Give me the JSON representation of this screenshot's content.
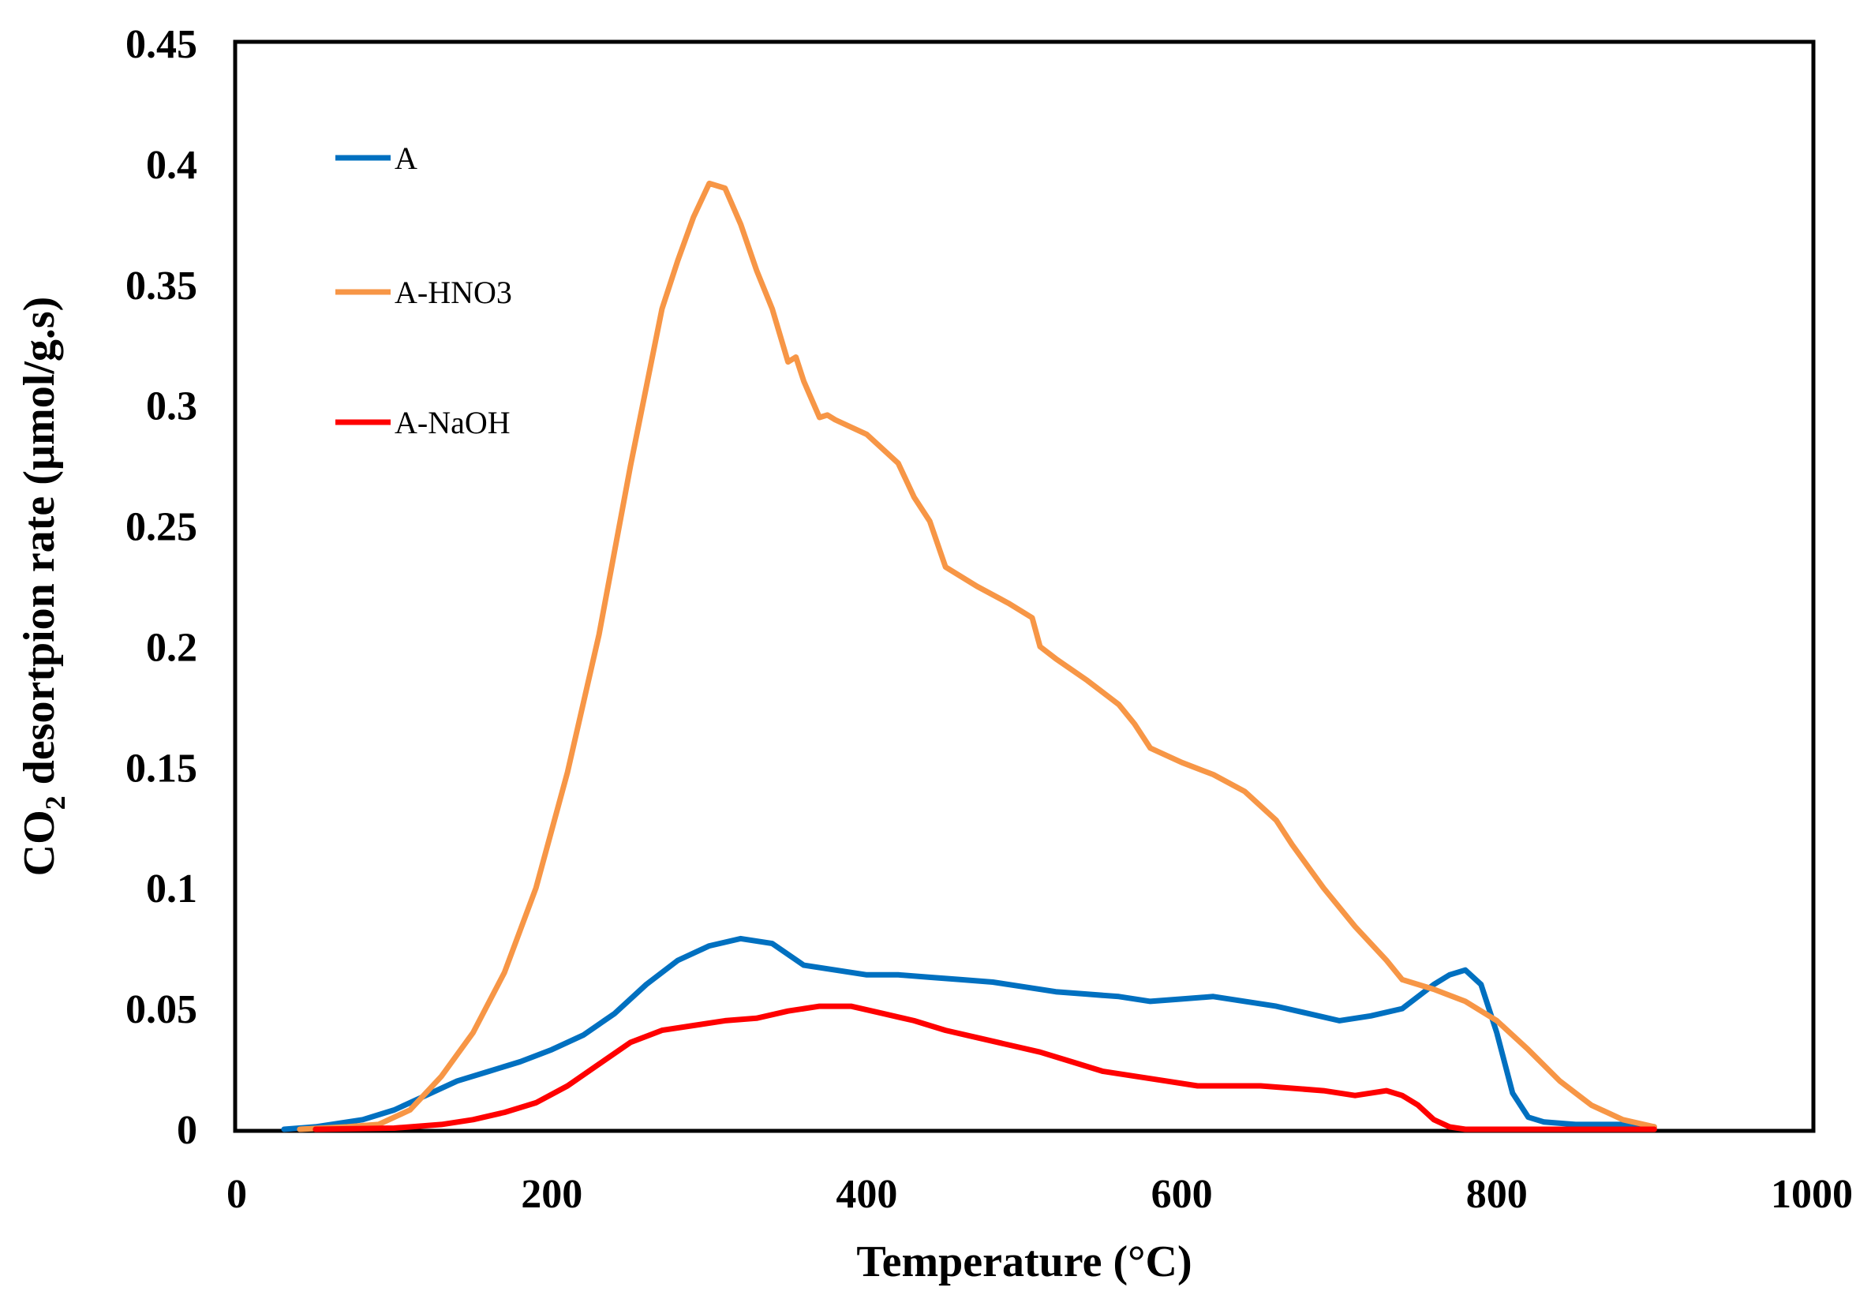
{
  "chart_data": {
    "type": "line",
    "title": "",
    "xlabel": "Temperature (°C)",
    "ylabel_main": "CO",
    "ylabel_sub": "2",
    "ylabel_rest": " desortpion rate (µmol/g.s)",
    "xlim": [
      0,
      1000
    ],
    "ylim": [
      0,
      0.45
    ],
    "xticks": [
      0,
      200,
      400,
      600,
      800,
      1000
    ],
    "xtick_labels": [
      "0",
      "200",
      "400",
      "600",
      "800",
      "1000"
    ],
    "yticks": [
      0,
      0.05,
      0.1,
      0.15,
      0.2,
      0.25,
      0.3,
      0.35,
      0.4,
      0.45
    ],
    "ytick_labels": [
      "0",
      "0.05",
      "0.1",
      "0.15",
      "0.2",
      "0.25",
      "0.3",
      "0.35",
      "0.4",
      "0.45"
    ],
    "grid": false,
    "legend_position": "top-left",
    "series": [
      {
        "name": "A",
        "color": "#0070C0",
        "x": [
          30,
          50,
          80,
          100,
          120,
          140,
          160,
          180,
          200,
          220,
          240,
          260,
          280,
          300,
          320,
          340,
          360,
          380,
          400,
          420,
          440,
          460,
          480,
          500,
          520,
          540,
          560,
          580,
          600,
          620,
          640,
          660,
          680,
          700,
          720,
          740,
          760,
          770,
          780,
          790,
          800,
          810,
          820,
          830,
          850,
          880,
          900
        ],
        "y": [
          0,
          0.001,
          0.004,
          0.008,
          0.014,
          0.02,
          0.024,
          0.028,
          0.033,
          0.039,
          0.048,
          0.06,
          0.07,
          0.076,
          0.079,
          0.077,
          0.068,
          0.066,
          0.064,
          0.064,
          0.063,
          0.062,
          0.061,
          0.059,
          0.057,
          0.056,
          0.055,
          0.053,
          0.054,
          0.055,
          0.053,
          0.051,
          0.048,
          0.045,
          0.047,
          0.05,
          0.06,
          0.064,
          0.066,
          0.06,
          0.04,
          0.015,
          0.005,
          0.003,
          0.002,
          0.002,
          0.001
        ]
      },
      {
        "name": "A-HNO3",
        "color": "#F79646",
        "x": [
          40,
          70,
          90,
          110,
          130,
          150,
          170,
          190,
          210,
          230,
          250,
          270,
          280,
          290,
          300,
          310,
          320,
          330,
          340,
          350,
          355,
          360,
          370,
          375,
          380,
          400,
          420,
          430,
          440,
          450,
          470,
          490,
          505,
          510,
          520,
          540,
          560,
          570,
          580,
          600,
          620,
          640,
          660,
          670,
          690,
          710,
          730,
          740,
          760,
          780,
          800,
          820,
          840,
          860,
          880,
          900
        ],
        "y": [
          0,
          0.001,
          0.002,
          0.008,
          0.022,
          0.04,
          0.065,
          0.1,
          0.148,
          0.205,
          0.275,
          0.34,
          0.36,
          0.378,
          0.392,
          0.39,
          0.375,
          0.356,
          0.34,
          0.318,
          0.32,
          0.31,
          0.295,
          0.296,
          0.294,
          0.288,
          0.276,
          0.262,
          0.252,
          0.233,
          0.225,
          0.218,
          0.212,
          0.2,
          0.195,
          0.186,
          0.176,
          0.168,
          0.158,
          0.152,
          0.147,
          0.14,
          0.128,
          0.118,
          0.1,
          0.084,
          0.07,
          0.062,
          0.058,
          0.053,
          0.045,
          0.033,
          0.02,
          0.01,
          0.004,
          0.001
        ]
      },
      {
        "name": "A-NaOH",
        "color": "#FF0000",
        "x": [
          50,
          100,
          130,
          150,
          170,
          190,
          210,
          230,
          250,
          270,
          290,
          310,
          330,
          350,
          370,
          390,
          410,
          430,
          450,
          470,
          490,
          510,
          530,
          550,
          570,
          590,
          610,
          630,
          650,
          670,
          690,
          710,
          730,
          740,
          750,
          760,
          770,
          780,
          800,
          850,
          900
        ],
        "y": [
          0,
          0.0005,
          0.002,
          0.004,
          0.007,
          0.011,
          0.018,
          0.027,
          0.036,
          0.041,
          0.043,
          0.045,
          0.046,
          0.049,
          0.051,
          0.051,
          0.048,
          0.045,
          0.041,
          0.038,
          0.035,
          0.032,
          0.028,
          0.024,
          0.022,
          0.02,
          0.018,
          0.018,
          0.018,
          0.017,
          0.016,
          0.014,
          0.016,
          0.014,
          0.01,
          0.004,
          0.001,
          0,
          0,
          0,
          0
        ]
      }
    ]
  }
}
